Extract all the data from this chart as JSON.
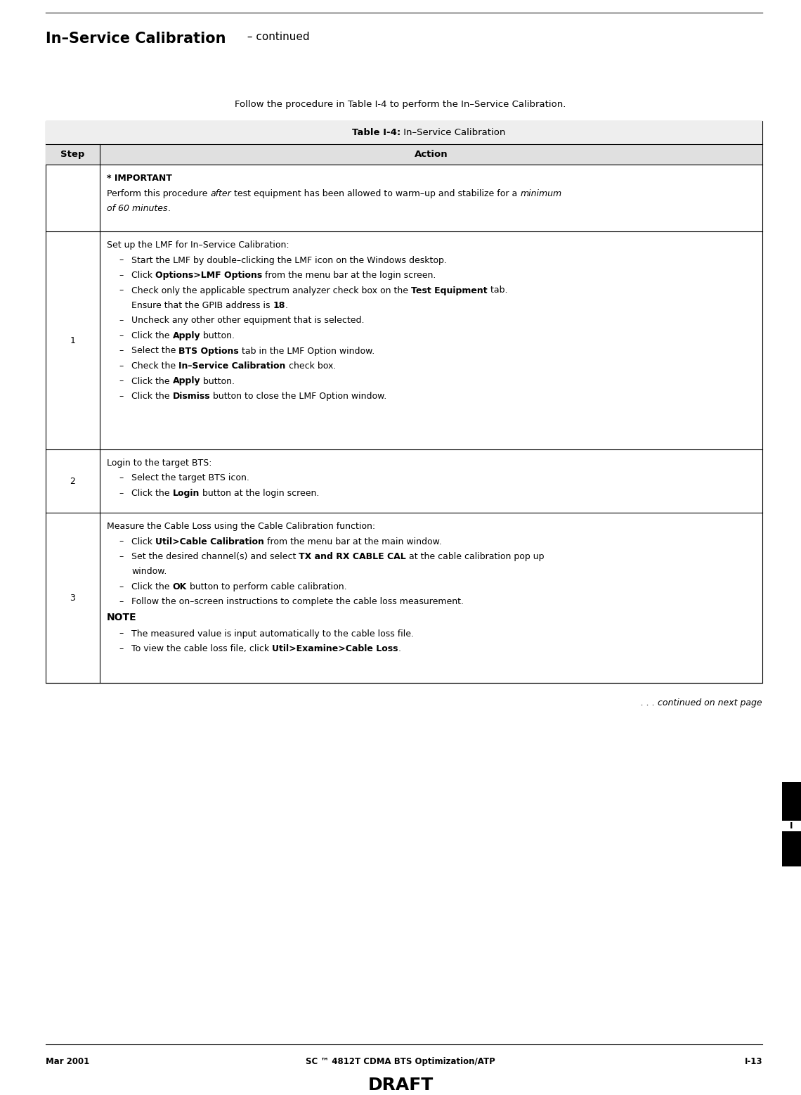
{
  "page_width": 11.4,
  "page_height": 15.57,
  "bg_color": "#ffffff",
  "header_title_bold": "In–Service Calibration",
  "header_title_normal": " – continued",
  "intro_text": "Follow the procedure in Table I-4 to perform the In–Service Calibration.",
  "table_title_bold": "Table I-4:",
  "table_title_normal": " In–Service Calibration",
  "footer_left": "Mar 2001",
  "footer_center": "SC ™ 4812T CDMA BTS Optimization/ATP",
  "footer_right": "I-13",
  "footer_draft": "DRAFT",
  "continued_text": ". . . continued on next page"
}
